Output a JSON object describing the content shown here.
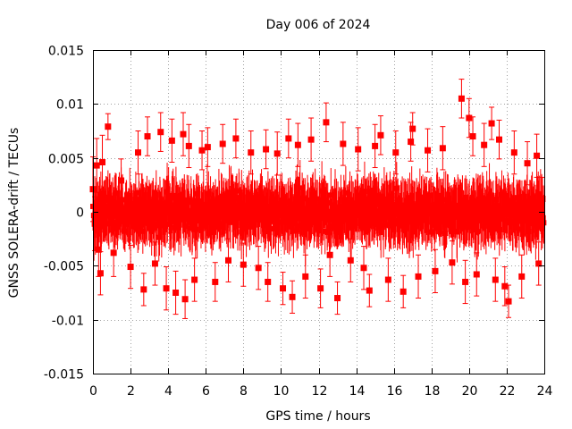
{
  "chart_data": {
    "type": "scatter",
    "title": "Day 006 of 2024",
    "xlabel": "GPS time / hours",
    "ylabel": "GNSS SOLERA-drift / TECUs",
    "xlim": [
      0,
      24
    ],
    "ylim": [
      -0.015,
      0.015
    ],
    "x_ticks": [
      0,
      2,
      4,
      6,
      8,
      10,
      12,
      14,
      16,
      18,
      20,
      22,
      24
    ],
    "x_tick_labels": [
      "0",
      "2",
      "4",
      "6",
      "8",
      "10",
      "12",
      "14",
      "16",
      "18",
      "20",
      "22",
      "24"
    ],
    "y_ticks": [
      -0.015,
      -0.01,
      -0.005,
      0,
      0.005,
      0.01,
      0.015
    ],
    "y_tick_labels": [
      "-0.015",
      "-0.01",
      "-0.005",
      "0",
      "0.005",
      "0.01",
      "0.015"
    ],
    "grid": true,
    "series_color": "#ff0000",
    "error_bars": true,
    "series": [
      {
        "name": "SOLERA-drift",
        "points": [
          {
            "x": 0.0,
            "y": 0.0021,
            "err": 0.003
          },
          {
            "x": 0.1,
            "y": -0.0011,
            "err": 0.0025
          },
          {
            "x": 0.2,
            "y": 0.0043,
            "err": 0.0025
          },
          {
            "x": 0.3,
            "y": -0.0035,
            "err": 0.0025
          },
          {
            "x": 0.4,
            "y": -0.0057,
            "err": 0.002
          },
          {
            "x": 0.5,
            "y": 0.0046,
            "err": 0.0025
          },
          {
            "x": 0.8,
            "y": 0.0079,
            "err": 0.0012
          },
          {
            "x": 1.1,
            "y": -0.0038,
            "err": 0.0022
          },
          {
            "x": 1.5,
            "y": 0.0029,
            "err": 0.002
          },
          {
            "x": 2.0,
            "y": -0.0051,
            "err": 0.002
          },
          {
            "x": 2.4,
            "y": 0.0055,
            "err": 0.002
          },
          {
            "x": 2.7,
            "y": -0.0072,
            "err": 0.0015
          },
          {
            "x": 2.9,
            "y": 0.007,
            "err": 0.0018
          },
          {
            "x": 3.3,
            "y": -0.0048,
            "err": 0.002
          },
          {
            "x": 3.6,
            "y": 0.0074,
            "err": 0.0018
          },
          {
            "x": 3.9,
            "y": -0.0071,
            "err": 0.002
          },
          {
            "x": 4.2,
            "y": 0.0066,
            "err": 0.002
          },
          {
            "x": 4.4,
            "y": -0.0075,
            "err": 0.002
          },
          {
            "x": 4.8,
            "y": 0.0072,
            "err": 0.002
          },
          {
            "x": 4.9,
            "y": -0.0081,
            "err": 0.0018
          },
          {
            "x": 5.1,
            "y": 0.0061,
            "err": 0.002
          },
          {
            "x": 5.4,
            "y": -0.0063,
            "err": 0.002
          },
          {
            "x": 5.8,
            "y": 0.0057,
            "err": 0.0018
          },
          {
            "x": 6.1,
            "y": 0.006,
            "err": 0.0018
          },
          {
            "x": 6.5,
            "y": -0.0065,
            "err": 0.0018
          },
          {
            "x": 6.9,
            "y": 0.0063,
            "err": 0.0018
          },
          {
            "x": 7.2,
            "y": -0.0045,
            "err": 0.002
          },
          {
            "x": 7.6,
            "y": 0.0068,
            "err": 0.0018
          },
          {
            "x": 8.0,
            "y": -0.0049,
            "err": 0.002
          },
          {
            "x": 8.4,
            "y": 0.0055,
            "err": 0.002
          },
          {
            "x": 8.8,
            "y": -0.0052,
            "err": 0.002
          },
          {
            "x": 9.2,
            "y": 0.0058,
            "err": 0.0018
          },
          {
            "x": 9.3,
            "y": -0.0065,
            "err": 0.0018
          },
          {
            "x": 9.8,
            "y": 0.0054,
            "err": 0.002
          },
          {
            "x": 10.1,
            "y": -0.0071,
            "err": 0.0015
          },
          {
            "x": 10.4,
            "y": 0.0068,
            "err": 0.0018
          },
          {
            "x": 10.6,
            "y": -0.0079,
            "err": 0.0015
          },
          {
            "x": 10.9,
            "y": 0.0062,
            "err": 0.002
          },
          {
            "x": 11.3,
            "y": -0.006,
            "err": 0.002
          },
          {
            "x": 11.6,
            "y": 0.0067,
            "err": 0.002
          },
          {
            "x": 12.1,
            "y": -0.0071,
            "err": 0.0018
          },
          {
            "x": 12.4,
            "y": 0.0083,
            "err": 0.0018
          },
          {
            "x": 12.6,
            "y": -0.004,
            "err": 0.002
          },
          {
            "x": 13.0,
            "y": -0.008,
            "err": 0.0015
          },
          {
            "x": 13.3,
            "y": 0.0063,
            "err": 0.002
          },
          {
            "x": 13.7,
            "y": -0.0045,
            "err": 0.002
          },
          {
            "x": 14.1,
            "y": 0.0058,
            "err": 0.002
          },
          {
            "x": 14.4,
            "y": -0.0052,
            "err": 0.002
          },
          {
            "x": 14.7,
            "y": -0.0073,
            "err": 0.0015
          },
          {
            "x": 15.0,
            "y": 0.0061,
            "err": 0.002
          },
          {
            "x": 15.3,
            "y": 0.0071,
            "err": 0.0018
          },
          {
            "x": 15.7,
            "y": -0.0063,
            "err": 0.002
          },
          {
            "x": 16.1,
            "y": 0.0055,
            "err": 0.002
          },
          {
            "x": 16.5,
            "y": -0.0074,
            "err": 0.0015
          },
          {
            "x": 16.9,
            "y": 0.0065,
            "err": 0.0018
          },
          {
            "x": 17.0,
            "y": 0.0077,
            "err": 0.0015
          },
          {
            "x": 17.3,
            "y": -0.006,
            "err": 0.002
          },
          {
            "x": 17.8,
            "y": 0.0057,
            "err": 0.002
          },
          {
            "x": 18.2,
            "y": -0.0055,
            "err": 0.002
          },
          {
            "x": 18.6,
            "y": 0.0059,
            "err": 0.002
          },
          {
            "x": 19.1,
            "y": -0.0047,
            "err": 0.002
          },
          {
            "x": 19.6,
            "y": 0.0105,
            "err": 0.0018
          },
          {
            "x": 19.8,
            "y": -0.0065,
            "err": 0.002
          },
          {
            "x": 20.0,
            "y": 0.0087,
            "err": 0.0018
          },
          {
            "x": 20.2,
            "y": 0.007,
            "err": 0.0018
          },
          {
            "x": 20.4,
            "y": -0.0058,
            "err": 0.002
          },
          {
            "x": 20.8,
            "y": 0.0062,
            "err": 0.002
          },
          {
            "x": 21.2,
            "y": 0.0082,
            "err": 0.0015
          },
          {
            "x": 21.4,
            "y": -0.0063,
            "err": 0.002
          },
          {
            "x": 21.6,
            "y": 0.0067,
            "err": 0.0018
          },
          {
            "x": 21.9,
            "y": -0.0069,
            "err": 0.0018
          },
          {
            "x": 22.1,
            "y": -0.0083,
            "err": 0.0015
          },
          {
            "x": 22.4,
            "y": 0.0055,
            "err": 0.002
          },
          {
            "x": 22.8,
            "y": -0.006,
            "err": 0.002
          },
          {
            "x": 23.1,
            "y": 0.0045,
            "err": 0.002
          },
          {
            "x": 23.6,
            "y": 0.0052,
            "err": 0.002
          },
          {
            "x": 23.7,
            "y": -0.0048,
            "err": 0.002
          },
          {
            "x": 23.9,
            "y": 0.0012,
            "err": 0.002
          }
        ]
      }
    ]
  }
}
